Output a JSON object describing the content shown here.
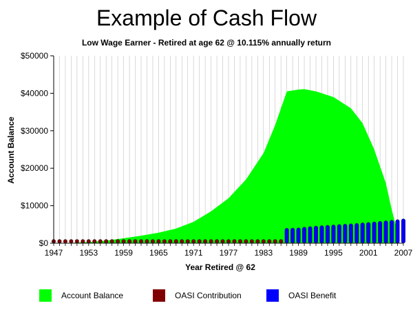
{
  "title": "Example of Cash Flow",
  "subtitle": "Low Wage Earner - Retired at age 62 @ 10.115% annually return",
  "colors": {
    "account_balance": "#00ff00",
    "oasi_contribution": "#800000",
    "oasi_benefit": "#0000ff"
  },
  "legend": [
    {
      "label": "Account Balance",
      "color": "#00ff00"
    },
    {
      "label": "OASI Contribution",
      "color": "#800000"
    },
    {
      "label": "OASI Benefit",
      "color": "#0000ff"
    }
  ],
  "chart_data": {
    "type": "area",
    "title": "Example of Cash Flow",
    "subtitle": "Low Wage Earner - Retired at age 62 @ 10.115% annually return",
    "xlabel": "Year Retired @ 62",
    "ylabel": "Account Balance",
    "xlim": [
      1947,
      2007
    ],
    "ylim": [
      0,
      50000
    ],
    "x_ticks": [
      1947,
      1953,
      1959,
      1965,
      1971,
      1977,
      1983,
      1989,
      1995,
      2001,
      2007
    ],
    "y_ticks": [
      "$0",
      "$10000",
      "$20000",
      "$30000",
      "$40000",
      "$50000"
    ],
    "y_tick_values": [
      0,
      10000,
      20000,
      30000,
      40000,
      50000
    ],
    "grid": "vertical",
    "legend_position": "bottom",
    "series": [
      {
        "name": "Account Balance",
        "type": "area",
        "points": [
          [
            1947,
            0
          ],
          [
            1950,
            100
          ],
          [
            1953,
            300
          ],
          [
            1956,
            700
          ],
          [
            1959,
            1300
          ],
          [
            1962,
            2000
          ],
          [
            1965,
            2800
          ],
          [
            1968,
            3900
          ],
          [
            1971,
            5700
          ],
          [
            1974,
            8500
          ],
          [
            1977,
            12000
          ],
          [
            1980,
            17000
          ],
          [
            1983,
            24000
          ],
          [
            1985,
            31500
          ],
          [
            1987,
            40500
          ],
          [
            1989,
            41000
          ],
          [
            1990,
            41100
          ],
          [
            1992,
            40500
          ],
          [
            1995,
            39000
          ],
          [
            1998,
            36000
          ],
          [
            2000,
            32000
          ],
          [
            2002,
            25000
          ],
          [
            2004,
            16000
          ],
          [
            2005,
            9000
          ],
          [
            2006,
            2800
          ]
        ]
      },
      {
        "name": "OASI Contribution",
        "type": "bar",
        "points": [
          [
            1947,
            60
          ],
          [
            1948,
            60
          ],
          [
            1949,
            60
          ],
          [
            1950,
            70
          ],
          [
            1951,
            80
          ],
          [
            1952,
            90
          ],
          [
            1953,
            100
          ],
          [
            1954,
            120
          ],
          [
            1955,
            130
          ],
          [
            1956,
            140
          ],
          [
            1957,
            150
          ],
          [
            1958,
            160
          ],
          [
            1959,
            180
          ],
          [
            1960,
            200
          ],
          [
            1961,
            210
          ],
          [
            1962,
            220
          ],
          [
            1963,
            240
          ],
          [
            1964,
            250
          ],
          [
            1965,
            260
          ],
          [
            1966,
            280
          ],
          [
            1967,
            290
          ],
          [
            1968,
            300
          ],
          [
            1969,
            310
          ],
          [
            1970,
            330
          ],
          [
            1971,
            340
          ],
          [
            1972,
            360
          ],
          [
            1973,
            380
          ],
          [
            1974,
            400
          ],
          [
            1975,
            420
          ],
          [
            1976,
            450
          ],
          [
            1977,
            480
          ],
          [
            1978,
            510
          ],
          [
            1979,
            550
          ],
          [
            1980,
            590
          ],
          [
            1981,
            630
          ],
          [
            1982,
            670
          ],
          [
            1983,
            710
          ],
          [
            1984,
            750
          ],
          [
            1985,
            800
          ],
          [
            1986,
            850
          ]
        ]
      },
      {
        "name": "OASI Benefit",
        "type": "bar",
        "points": [
          [
            1987,
            4000
          ],
          [
            1988,
            4050
          ],
          [
            1989,
            4100
          ],
          [
            1990,
            4300
          ],
          [
            1991,
            4450
          ],
          [
            1992,
            4600
          ],
          [
            1993,
            4700
          ],
          [
            1994,
            4800
          ],
          [
            1995,
            4900
          ],
          [
            1996,
            5000
          ],
          [
            1997,
            5100
          ],
          [
            1998,
            5200
          ],
          [
            1999,
            5300
          ],
          [
            2000,
            5450
          ],
          [
            2001,
            5550
          ],
          [
            2002,
            5700
          ],
          [
            2003,
            5850
          ],
          [
            2004,
            6000
          ],
          [
            2005,
            6150
          ],
          [
            2006,
            6300
          ],
          [
            2007,
            6500
          ]
        ]
      }
    ]
  }
}
